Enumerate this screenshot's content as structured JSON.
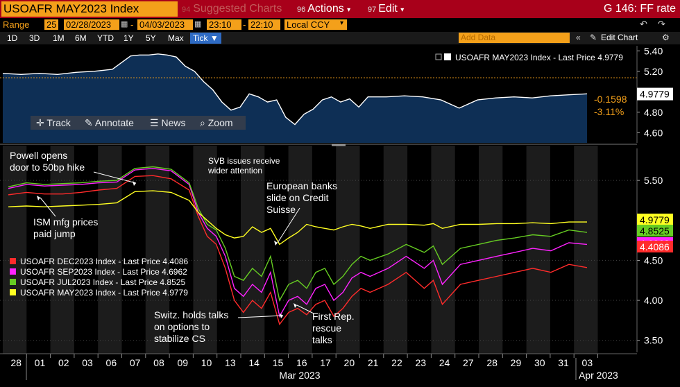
{
  "topbar": {
    "title": "USOAFR MAY2023 Index",
    "suggested_num": "94",
    "suggested_label": "Suggested Charts",
    "actions_num": "96",
    "actions_label": "Actions",
    "edit_num": "97",
    "edit_label": "Edit",
    "right_title": "G 146: FF rate"
  },
  "range": {
    "label": "Range",
    "count": "25",
    "start_date": "02/28/2023",
    "end_date": "04/03/2023",
    "start_time": "23:10",
    "end_time": "22:10",
    "currency": "Local CCY"
  },
  "periods": [
    "1D",
    "3D",
    "1M",
    "6M",
    "YTD",
    "1Y",
    "5Y",
    "Max"
  ],
  "tick_label": "Tick",
  "add_data_placeholder": "Add Data",
  "edit_chart_label": "Edit Chart",
  "toolbar": {
    "track": "Track",
    "annotate": "Annotate",
    "news": "News",
    "zoom": "Zoom"
  },
  "colors": {
    "red": "#ff2b2b",
    "magenta": "#ff22ff",
    "green": "#66cc22",
    "yellow": "#ffff22",
    "orange": "#f4a01a",
    "topbar": "#a8001a",
    "panel": "#0e2f55"
  },
  "chart_data": [
    {
      "type": "area",
      "legend": "USOAFR MAY2023 Index - Last Price 4.9779",
      "last_value_label": "4.9779",
      "change_label": "-0.1598",
      "change_pct_label": "-3.11%",
      "reference_line": 5.137,
      "ylim": [
        4.5,
        5.45
      ],
      "yticks": [
        "5.40",
        "5.20",
        "5.00",
        "4.80",
        "4.60"
      ],
      "x": [
        0,
        1,
        2,
        3,
        4,
        5,
        6,
        7,
        7.5,
        8,
        8.5,
        9,
        9.5,
        10,
        10.5,
        11,
        11.5,
        12,
        12.5,
        13,
        13.5,
        14,
        14.5,
        15,
        15.5,
        16,
        16.5,
        17,
        17.5,
        18,
        18.5,
        19,
        19.5,
        20,
        21,
        22,
        23,
        24,
        25,
        26,
        27,
        28,
        29,
        30,
        31,
        32
      ],
      "values": [
        5.18,
        5.17,
        5.18,
        5.17,
        5.19,
        5.2,
        5.22,
        5.35,
        5.36,
        5.36,
        5.37,
        5.36,
        5.34,
        5.25,
        5.2,
        5.1,
        5.02,
        4.9,
        4.82,
        4.85,
        4.98,
        4.95,
        4.9,
        4.92,
        4.75,
        4.68,
        4.78,
        4.83,
        4.92,
        4.95,
        4.9,
        4.93,
        4.85,
        4.95,
        4.95,
        4.96,
        4.95,
        4.92,
        4.84,
        4.92,
        4.94,
        4.95,
        4.94,
        4.96,
        4.97,
        4.98
      ]
    },
    {
      "type": "line",
      "ylim": [
        3.35,
        5.9
      ],
      "yticks": [
        "5.50",
        "4.50",
        "4.00",
        "3.50"
      ],
      "x_tick_labels": [
        "28",
        "01",
        "02",
        "03",
        "06",
        "07",
        "08",
        "09",
        "10",
        "13",
        "14",
        "15",
        "16",
        "17",
        "20",
        "21",
        "22",
        "23",
        "24",
        "27",
        "28",
        "29",
        "30",
        "31",
        "03"
      ],
      "x_group_labels": [
        "Mar 2023",
        "Apr 2023"
      ],
      "series": [
        {
          "name": "USOAFR DEC2023 Index - Last Price",
          "last": "4.4086",
          "color": "#ff2b2b",
          "x": [
            0,
            1,
            2,
            3,
            4,
            5,
            6,
            7,
            8,
            9,
            10,
            10.5,
            11,
            11.5,
            12,
            12.5,
            13,
            13.5,
            14,
            14.5,
            15,
            15.5,
            16,
            16.5,
            17,
            17.5,
            18,
            18.5,
            19,
            19.5,
            20,
            21,
            22,
            23,
            23.5,
            24,
            25,
            26,
            27,
            28,
            29,
            30,
            31,
            32
          ],
          "values": [
            5.32,
            5.35,
            5.33,
            5.33,
            5.35,
            5.38,
            5.4,
            5.55,
            5.56,
            5.52,
            5.38,
            5.05,
            4.8,
            4.7,
            4.4,
            4.0,
            3.85,
            4.0,
            3.9,
            4.1,
            3.7,
            3.85,
            3.9,
            3.82,
            3.95,
            4.0,
            3.8,
            3.9,
            4.05,
            4.15,
            4.1,
            4.2,
            4.35,
            4.15,
            4.25,
            3.95,
            4.2,
            4.25,
            4.3,
            4.35,
            4.4,
            4.35,
            4.45,
            4.41
          ]
        },
        {
          "name": "USOAFR SEP2023 Index - Last Price",
          "last": "4.6962",
          "color": "#ff22ff",
          "x": [
            0,
            1,
            2,
            3,
            4,
            5,
            6,
            7,
            8,
            9,
            10,
            10.5,
            11,
            11.5,
            12,
            12.5,
            13,
            13.5,
            14,
            14.5,
            15,
            15.5,
            16,
            16.5,
            17,
            17.5,
            18,
            18.5,
            19,
            19.5,
            20,
            21,
            22,
            23,
            23.5,
            24,
            25,
            26,
            27,
            28,
            29,
            30,
            31,
            32
          ],
          "values": [
            5.4,
            5.45,
            5.43,
            5.44,
            5.45,
            5.47,
            5.48,
            5.63,
            5.65,
            5.62,
            5.45,
            5.1,
            4.9,
            4.8,
            4.55,
            4.15,
            4.05,
            4.2,
            4.1,
            4.35,
            3.8,
            4.0,
            4.05,
            3.95,
            4.15,
            4.2,
            4.0,
            4.1,
            4.28,
            4.35,
            4.3,
            4.4,
            4.55,
            4.4,
            4.5,
            4.2,
            4.45,
            4.5,
            4.55,
            4.6,
            4.65,
            4.62,
            4.72,
            4.7
          ]
        },
        {
          "name": "USOAFR JUL2023 Index - Last Price",
          "last": "4.8525",
          "color": "#66cc22",
          "x": [
            0,
            1,
            2,
            3,
            4,
            5,
            6,
            7,
            8,
            9,
            10,
            10.5,
            11,
            11.5,
            12,
            12.5,
            13,
            13.5,
            14,
            14.5,
            15,
            15.5,
            16,
            16.5,
            17,
            17.5,
            18,
            18.5,
            19,
            19.5,
            20,
            21,
            22,
            23,
            23.5,
            24,
            25,
            26,
            27,
            28,
            29,
            30,
            31,
            32
          ],
          "values": [
            5.42,
            5.47,
            5.45,
            5.46,
            5.47,
            5.49,
            5.5,
            5.65,
            5.67,
            5.64,
            5.47,
            5.15,
            4.95,
            4.88,
            4.65,
            4.3,
            4.25,
            4.4,
            4.3,
            4.55,
            4.0,
            4.2,
            4.25,
            4.15,
            4.35,
            4.4,
            4.2,
            4.3,
            4.45,
            4.55,
            4.5,
            4.58,
            4.7,
            4.6,
            4.68,
            4.45,
            4.65,
            4.7,
            4.75,
            4.78,
            4.82,
            4.8,
            4.88,
            4.85
          ]
        },
        {
          "name": "USOAFR MAY2023 Index - Last Price",
          "last": "4.9779",
          "color": "#ffff22",
          "x": [
            0,
            1,
            2,
            3,
            4,
            5,
            6,
            7,
            8,
            9,
            10,
            10.5,
            11,
            11.5,
            12,
            12.5,
            13,
            13.5,
            14,
            14.5,
            15,
            15.5,
            16,
            16.5,
            17,
            17.5,
            18,
            18.5,
            19,
            19.5,
            20,
            21,
            22,
            23,
            23.5,
            24,
            25,
            26,
            27,
            28,
            29,
            30,
            31,
            32
          ],
          "values": [
            5.17,
            5.18,
            5.17,
            5.18,
            5.19,
            5.2,
            5.22,
            5.36,
            5.37,
            5.35,
            5.25,
            5.1,
            5.0,
            4.9,
            4.82,
            4.78,
            4.8,
            4.92,
            4.85,
            4.9,
            4.7,
            4.78,
            4.85,
            4.95,
            4.92,
            4.9,
            4.88,
            4.92,
            4.95,
            4.93,
            4.9,
            4.95,
            4.95,
            4.94,
            4.96,
            4.9,
            4.95,
            4.95,
            4.96,
            4.96,
            4.97,
            4.96,
            4.98,
            4.98
          ]
        }
      ],
      "annotations": [
        "Powell opens door to 50bp hike",
        "ISM mfg prices paid jump",
        "SVB issues receive wider attention",
        "European banks slide on Credit Suisse",
        "Switz. holds talks on options to stabilize CS",
        "First Rep. rescue talks"
      ]
    }
  ]
}
